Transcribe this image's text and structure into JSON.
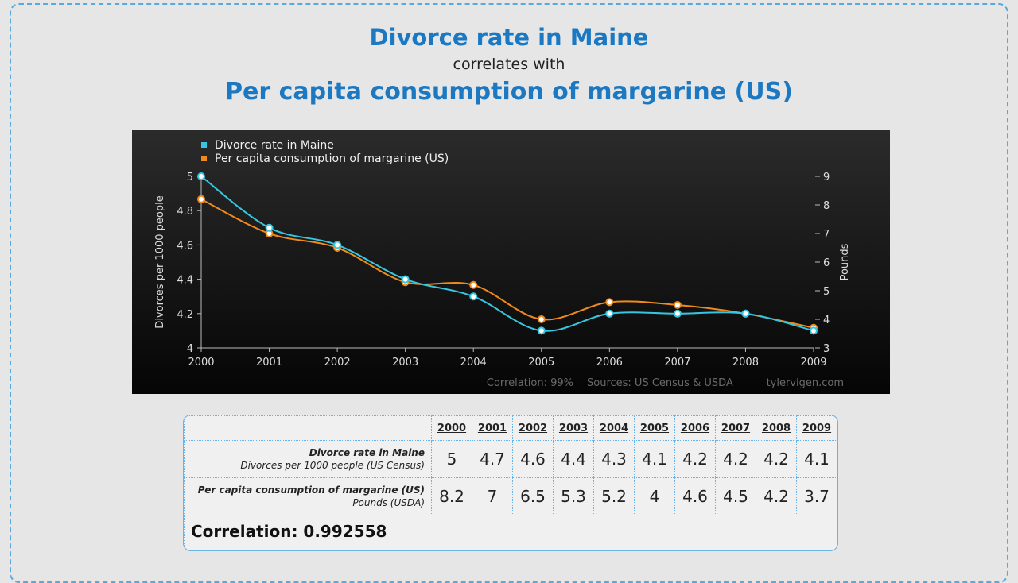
{
  "header": {
    "title1": "Divorce rate in Maine",
    "connector": "correlates with",
    "title2": "Per capita consumption of margarine (US)"
  },
  "chart_data": {
    "type": "line",
    "x": [
      2000,
      2001,
      2002,
      2003,
      2004,
      2005,
      2006,
      2007,
      2008,
      2009
    ],
    "series": [
      {
        "name": "Divorce rate in Maine",
        "axis": "left",
        "color": "#36c6e0",
        "values": [
          5,
          4.7,
          4.6,
          4.4,
          4.3,
          4.1,
          4.2,
          4.2,
          4.2,
          4.1
        ]
      },
      {
        "name": "Per capita consumption of margarine (US)",
        "axis": "right",
        "color": "#f08a1c",
        "values": [
          8.2,
          7,
          6.5,
          5.3,
          5.2,
          4,
          4.6,
          4.5,
          4.2,
          3.7
        ]
      }
    ],
    "ylabel_left": "Divorces per 1000 people",
    "ylabel_right": "Pounds",
    "ylim_left": [
      4,
      5
    ],
    "ylim_right": [
      3,
      9
    ],
    "yticks_left": [
      "4",
      "4.2",
      "4.4",
      "4.6",
      "4.8",
      "5"
    ],
    "yticks_right": [
      "3",
      "4",
      "5",
      "6",
      "7",
      "8",
      "9"
    ],
    "legend_position": "top-left",
    "footer": {
      "correlation": "Correlation: 99%",
      "sources": "Sources: US Census & USDA",
      "site": "tylervigen.com"
    }
  },
  "table": {
    "years": [
      "2000",
      "2001",
      "2002",
      "2003",
      "2004",
      "2005",
      "2006",
      "2007",
      "2008",
      "2009"
    ],
    "rows": [
      {
        "label": "Divorce rate in Maine",
        "sublabel": "Divorces per 1000 people (US Census)",
        "values": [
          "5",
          "4.7",
          "4.6",
          "4.4",
          "4.3",
          "4.1",
          "4.2",
          "4.2",
          "4.2",
          "4.1"
        ]
      },
      {
        "label": "Per capita consumption of margarine (US)",
        "sublabel": "Pounds (USDA)",
        "values": [
          "8.2",
          "7",
          "6.5",
          "5.3",
          "5.2",
          "4",
          "4.6",
          "4.5",
          "4.2",
          "3.7"
        ]
      }
    ],
    "correlation": "Correlation: 0.992558"
  }
}
